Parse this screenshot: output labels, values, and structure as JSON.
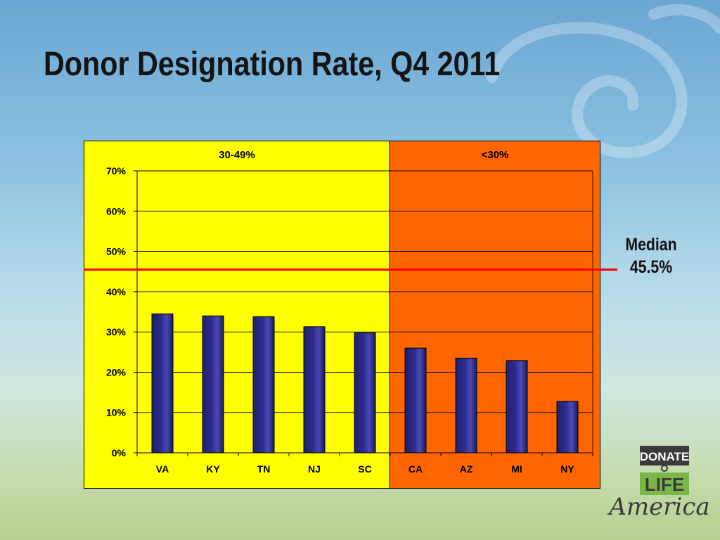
{
  "slide": {
    "title": "Donor Designation Rate, Q4 2011"
  },
  "chart_data": {
    "type": "bar",
    "categories": [
      "VA",
      "KY",
      "TN",
      "NJ",
      "SC",
      "CA",
      "AZ",
      "MI",
      "NY"
    ],
    "values": [
      34.5,
      34.0,
      33.8,
      31.3,
      29.8,
      26.0,
      23.5,
      22.9,
      12.8
    ],
    "ylim": [
      0,
      70
    ],
    "yticks": [
      0,
      10,
      20,
      30,
      40,
      50,
      60,
      70
    ],
    "ytick_labels": [
      "0%",
      "10%",
      "20%",
      "30%",
      "40%",
      "50%",
      "60%",
      "70%"
    ],
    "grid": true,
    "bar_color": "#2d2d8f",
    "bands": [
      {
        "label": "30-49%",
        "from": 0,
        "to": 4,
        "color": "#ffff00"
      },
      {
        "label": "<30%",
        "from": 5,
        "to": 8,
        "color": "#ff6600"
      }
    ],
    "median": {
      "value": 45.5,
      "label_line1": "Median",
      "label_line2": "45.5%",
      "color": "#ff0000"
    }
  },
  "logo": {
    "line1": "DONATE",
    "line2": "LIFE",
    "line3": "America",
    "dark_color": "#3a3a3a",
    "green_color": "#7ab648"
  }
}
